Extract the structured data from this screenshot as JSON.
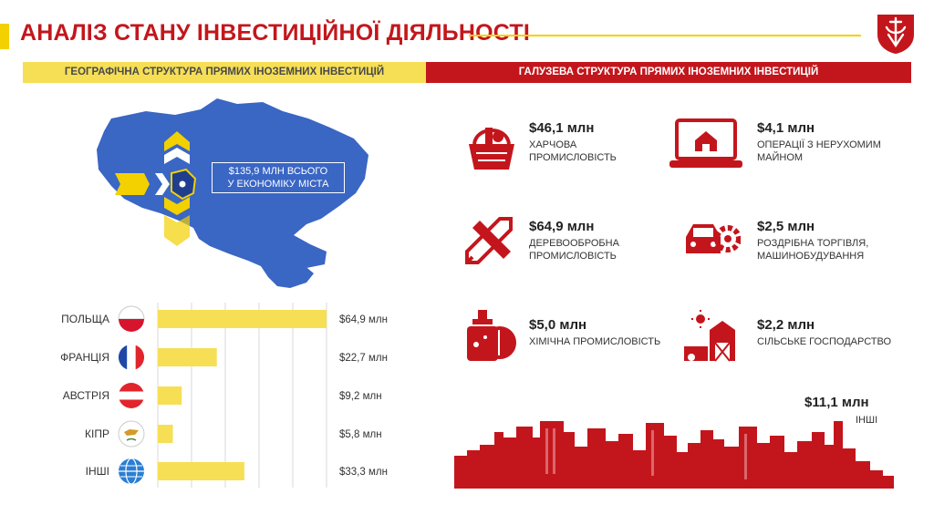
{
  "header": {
    "title": "АНАЛІЗ СТАНУ ІНВЕСТИЦІЙНОЇ ДІЯЛЬНОСТІ",
    "left_band": "ГЕОГРАФІЧНА СТРУКТУРА ПРЯМИХ ІНОЗЕМНИХ ІНВЕСТИЦІЙ",
    "right_band": "ГАЛУЗЕВА СТРУКТУРА ПРЯМИХ ІНОЗЕМНИХ ІНВЕСТИЦІЙ"
  },
  "map": {
    "total_line1": "$135,9 млн всього",
    "total_line2": "у економіку міста"
  },
  "colors": {
    "red": "#c3161c",
    "yellow": "#f3d000",
    "bar_yellow": "#f6df55",
    "map_blue": "#3a66c4"
  },
  "chart_data": {
    "type": "bar",
    "orientation": "horizontal",
    "categories": [
      "ПОЛЬЩА",
      "ФРАНЦІЯ",
      "АВСТРІЯ",
      "КІПР",
      "ІНШІ"
    ],
    "values": [
      64.9,
      22.7,
      9.2,
      5.8,
      33.3
    ],
    "value_labels": [
      "$64,9 млн",
      "$22,7 млн",
      "$9,2 млн",
      "$5,8 млн",
      "$33,3 млн"
    ],
    "flag_icons": [
      "poland-flag-icon",
      "france-flag-icon",
      "austria-flag-icon",
      "cyprus-flag-icon",
      "globe-icon"
    ],
    "xlim": [
      0,
      64.9
    ],
    "grid": true
  },
  "sectors": [
    {
      "value": "$46,1 млн",
      "name": "Харчова промисловість",
      "icon": "food-basket-icon"
    },
    {
      "value": "$4,1 млн",
      "name": "Операції з нерухомим майном",
      "icon": "real-estate-laptop-icon"
    },
    {
      "value": "$64,9 млн",
      "name": "Деревообробна промисловість",
      "icon": "pencil-ruler-icon"
    },
    {
      "value": "$2,5 млн",
      "name": "Роздрібна торгівля, машинобудування",
      "icon": "car-gear-icon"
    },
    {
      "value": "$5,0 млн",
      "name": "Хімічна промисловість",
      "icon": "chemical-bottle-icon"
    },
    {
      "value": "$2,2 млн",
      "name": "Сільське господарство",
      "icon": "farm-barn-icon"
    }
  ],
  "others": {
    "value": "$11,1 млн",
    "name": "ІНШІ"
  }
}
